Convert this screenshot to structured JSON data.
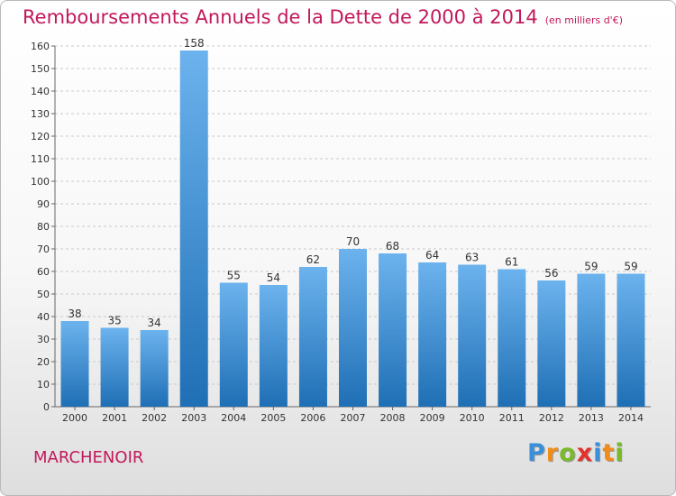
{
  "title": "Remboursements Annuels de la Dette de 2000 à 2014",
  "unit_note": "(en milliers d'€)",
  "town": "MARCHENOIR",
  "logo": {
    "text": "Proxiti",
    "letters": [
      {
        "ch": "P",
        "color": "#3b8fd9"
      },
      {
        "ch": "r",
        "color": "#f08c1a"
      },
      {
        "ch": "o",
        "color": "#7ab929"
      },
      {
        "ch": "x",
        "color": "#e8302b"
      },
      {
        "ch": "i",
        "color": "#3b8fd9"
      },
      {
        "ch": "t",
        "color": "#f08c1a"
      },
      {
        "ch": "i",
        "color": "#7ab929"
      }
    ]
  },
  "colors": {
    "bar_top": "#6cb3ee",
    "bar_bottom": "#1f6fb5",
    "title": "#c2185b",
    "grid": "#c9c9c9"
  },
  "chart_data": {
    "type": "bar",
    "categories": [
      "2000",
      "2001",
      "2002",
      "2003",
      "2004",
      "2005",
      "2006",
      "2007",
      "2008",
      "2009",
      "2010",
      "2011",
      "2012",
      "2013",
      "2014"
    ],
    "values": [
      38,
      35,
      34,
      158,
      55,
      54,
      62,
      70,
      68,
      64,
      63,
      61,
      56,
      59,
      59
    ],
    "data_labels": [
      "38",
      "35",
      "34",
      "158",
      "55",
      "54",
      "62",
      "70",
      "68",
      "64",
      "63",
      "61",
      "56",
      "59",
      "59"
    ],
    "y_ticks": [
      0,
      10,
      20,
      30,
      40,
      50,
      60,
      70,
      80,
      90,
      100,
      110,
      120,
      130,
      140,
      150,
      160
    ],
    "ylim": [
      0,
      160
    ],
    "grid": true,
    "legend": "none"
  }
}
